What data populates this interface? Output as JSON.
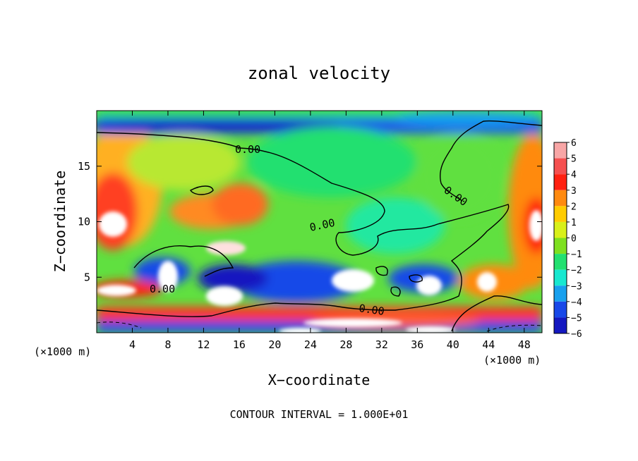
{
  "chart_data": {
    "type": "heatmap",
    "title": "zonal velocity",
    "xlabel": "X−coordinate",
    "ylabel": "Z−coordinate",
    "x_unit_label": "(×1000 m)",
    "y_unit_label": "(×1000 m)",
    "footer": "CONTOUR INTERVAL = 1.000E+01",
    "xlim": [
      0,
      50
    ],
    "ylim": [
      0,
      20
    ],
    "x_ticks": [
      4,
      8,
      12,
      16,
      20,
      24,
      28,
      32,
      36,
      40,
      44,
      48
    ],
    "y_ticks": [
      5,
      10,
      15
    ],
    "colorbar": {
      "levels": [
        6,
        5,
        4,
        3,
        2,
        1,
        0,
        -1,
        -2,
        -3,
        -4,
        -5,
        -6
      ],
      "colors": [
        "#f8a6a6",
        "#f55050",
        "#ff2010",
        "#ff8a10",
        "#ffcc00",
        "#d8f01a",
        "#7ee020",
        "#22e070",
        "#18e8d0",
        "#18a0ee",
        "#1848e8",
        "#1418c0",
        "#6a18c8"
      ],
      "range": [
        -6,
        6
      ]
    },
    "contour_labels": [
      "0.00",
      "0.00",
      "0.00",
      "0.00",
      "0.00"
    ]
  }
}
